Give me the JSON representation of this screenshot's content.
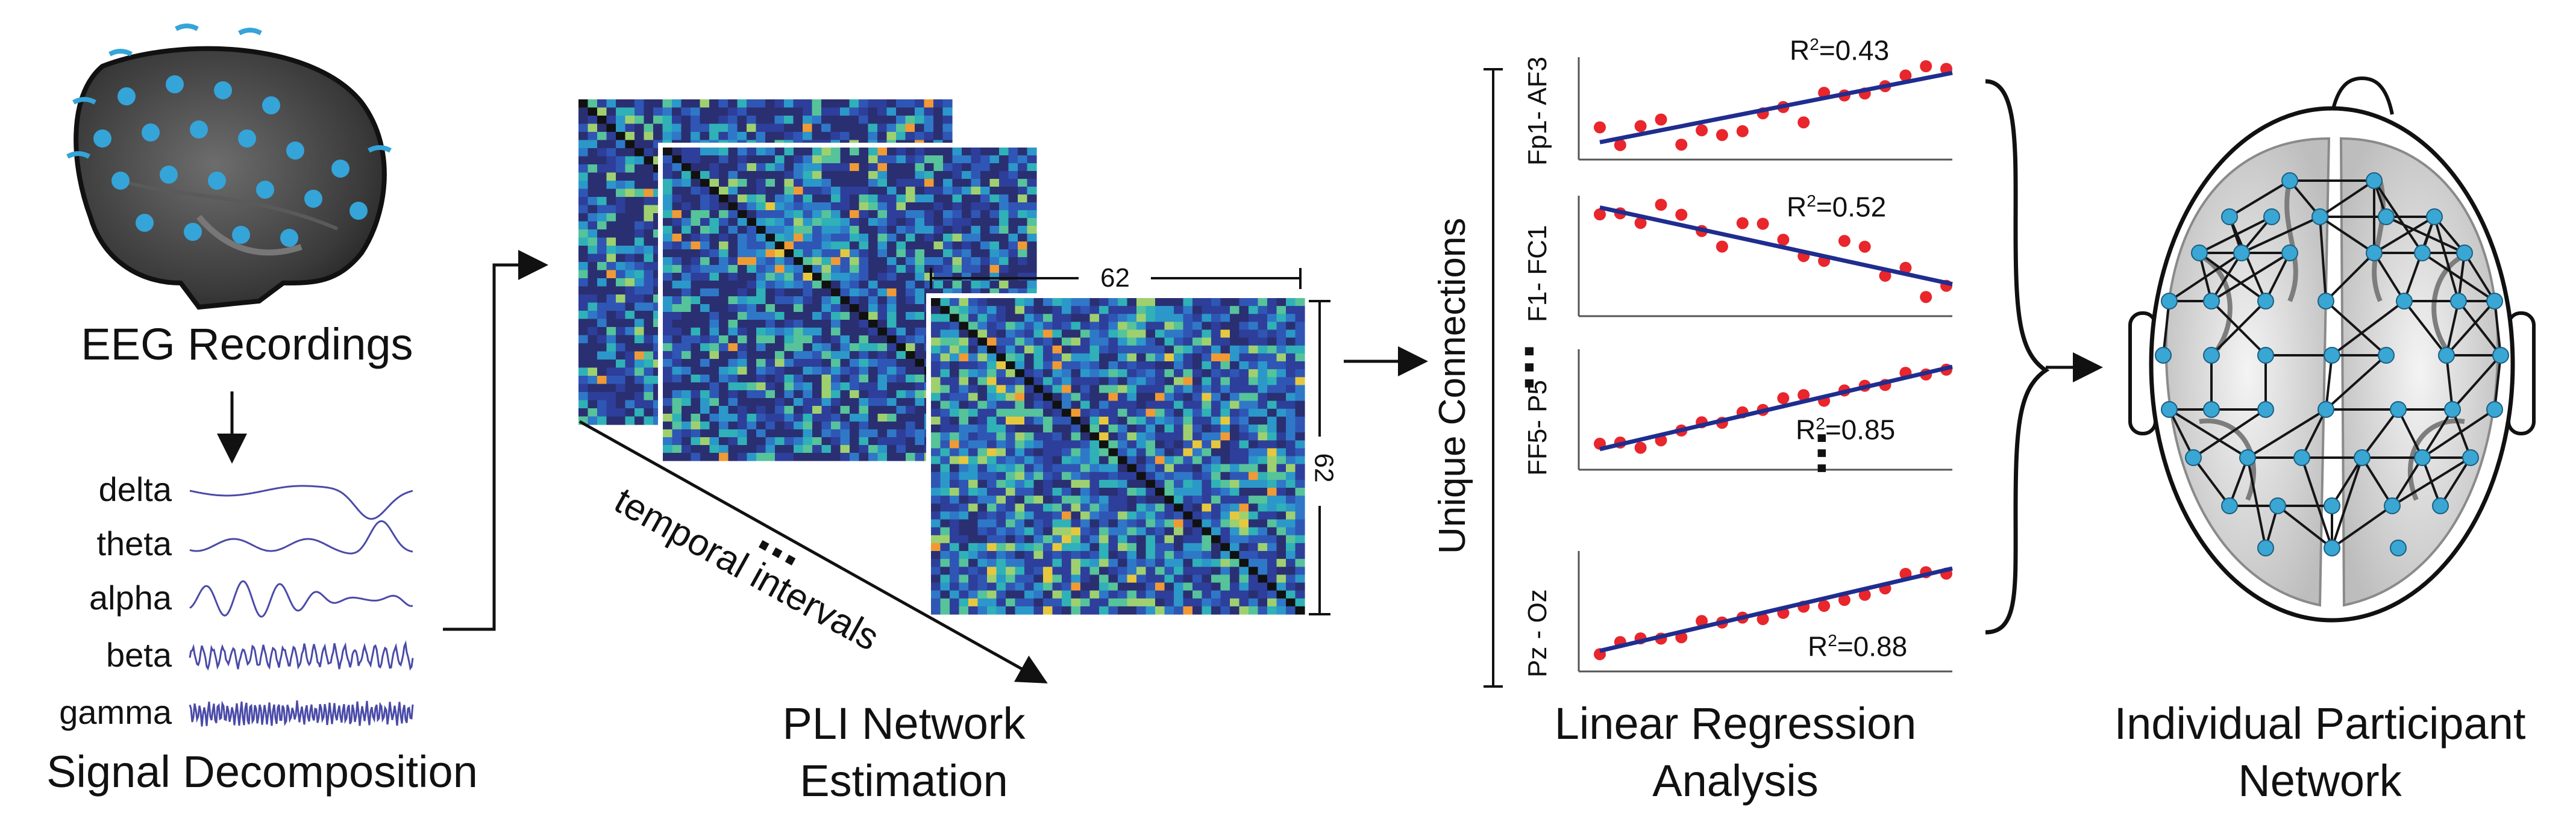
{
  "titles": {
    "eeg": "EEG Recordings",
    "decomposition": "Signal Decomposition",
    "pli_line1": "PLI Network",
    "pli_line2": "Estimation",
    "regression_line1": "Linear Regression",
    "regression_line2": "Analysis",
    "network_line1": "Individual Participant",
    "network_line2": "Network"
  },
  "bands": [
    "delta",
    "theta",
    "alpha",
    "beta",
    "gamma"
  ],
  "matrix": {
    "size_label_top": "62",
    "size_label_side": "62",
    "axis_label": "temporal intervals",
    "ellipsis": "..."
  },
  "regression": {
    "axis_label": "Unique Connections",
    "ellipsis": "...",
    "plots": [
      {
        "pair": "Fp1- AF3",
        "r2_label": "R",
        "r2_value": "=0.43",
        "trend": "up"
      },
      {
        "pair": "F1- FC1",
        "r2_label": "R",
        "r2_value": "=0.52",
        "trend": "down"
      },
      {
        "pair": "FF5- P5",
        "r2_label": "R",
        "r2_value": "=0.85",
        "trend": "up"
      },
      {
        "pair": "Pz - Oz",
        "r2_label": "R",
        "r2_value": "=0.88",
        "trend": "up"
      }
    ]
  },
  "colors": {
    "wave": "#4a4aa8",
    "regression_line": "#1f2d8f",
    "points": "#e8262c",
    "electrode": "#35a4d8",
    "node": "#3aa6d4",
    "matrix_low": "#27306b",
    "matrix_high": "#f3c53a"
  }
}
